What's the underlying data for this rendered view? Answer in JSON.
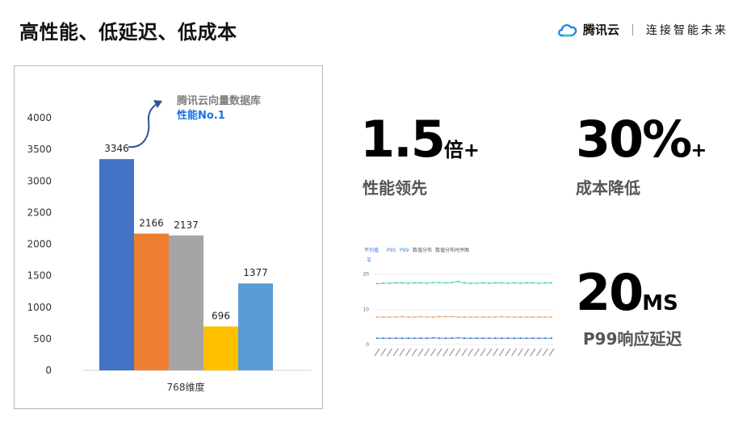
{
  "header": {
    "title": "高性能、低延迟、低成本",
    "brand_name": "腾讯云",
    "brand_slogan": "连接智能未来"
  },
  "chart_data": [
    {
      "type": "bar",
      "xlabel": "768维度",
      "ylabel": "",
      "ylim": [
        0,
        4000
      ],
      "yticks": [
        "0",
        "500",
        "1000",
        "1500",
        "2000",
        "2500",
        "3000",
        "3500",
        "4000"
      ],
      "categories": [
        "",
        "",
        "",
        "",
        ""
      ],
      "values": [
        3346,
        2166,
        2137,
        696,
        1377
      ],
      "colors": [
        "#4472c4",
        "#ed7d31",
        "#a5a5a5",
        "#ffc000",
        "#5b9bd5"
      ],
      "annotation": {
        "line1": "腾讯云向量数据库",
        "line2": "性能No.1",
        "line1_color": "#7f7f7f",
        "line2_color": "#1a73e8"
      },
      "grid": false
    },
    {
      "type": "line",
      "tabs": [
        "平均值",
        "P95",
        "P99",
        "数值分布",
        "数值分布时序图"
      ],
      "yticks": [
        "0",
        "10",
        "20"
      ],
      "ylim": [
        0,
        22
      ],
      "series": [
        {
          "color": "#4bd3a5",
          "values": [
            17.3,
            17.4,
            17.4,
            17.5,
            17.5,
            17.4,
            17.5,
            17.5,
            17.4,
            17.6,
            17.6,
            17.5,
            17.6,
            17.9,
            17.5,
            17.4,
            17.4,
            17.5,
            17.4,
            17.5,
            17.5,
            17.4,
            17.5,
            17.4,
            17.5,
            17.5,
            17.4,
            17.5,
            17.5
          ]
        },
        {
          "color": "#f5a66b",
          "values": [
            7.8,
            7.8,
            7.8,
            7.8,
            7.9,
            7.8,
            7.8,
            7.9,
            7.8,
            7.8,
            7.9,
            7.9,
            7.9,
            7.8,
            7.8,
            7.8,
            7.8,
            7.8,
            7.8,
            7.8,
            7.9,
            7.8,
            7.8,
            7.8,
            7.8,
            7.8,
            7.8,
            7.8,
            7.8
          ]
        },
        {
          "color": "#3a7bd5",
          "values": [
            1.8,
            1.8,
            1.8,
            1.8,
            1.8,
            1.8,
            1.8,
            1.8,
            1.8,
            1.9,
            1.8,
            1.8,
            1.8,
            1.9,
            1.8,
            1.8,
            1.8,
            1.8,
            1.8,
            1.8,
            1.8,
            1.8,
            1.8,
            1.8,
            1.8,
            1.8,
            1.8,
            1.8,
            1.8
          ]
        }
      ],
      "x_tick_count": 29
    }
  ],
  "stats": [
    {
      "value": "1.5",
      "suffix": "倍+",
      "label": "性能领先"
    },
    {
      "value": "30%",
      "suffix": "+",
      "label": "成本降低"
    },
    {
      "value": "20",
      "suffix": "MS",
      "label": "P99响应延迟"
    }
  ],
  "colors": {
    "cloud_icon_blue": "#1e88e5",
    "cloud_icon_teal": "#26c6da"
  }
}
